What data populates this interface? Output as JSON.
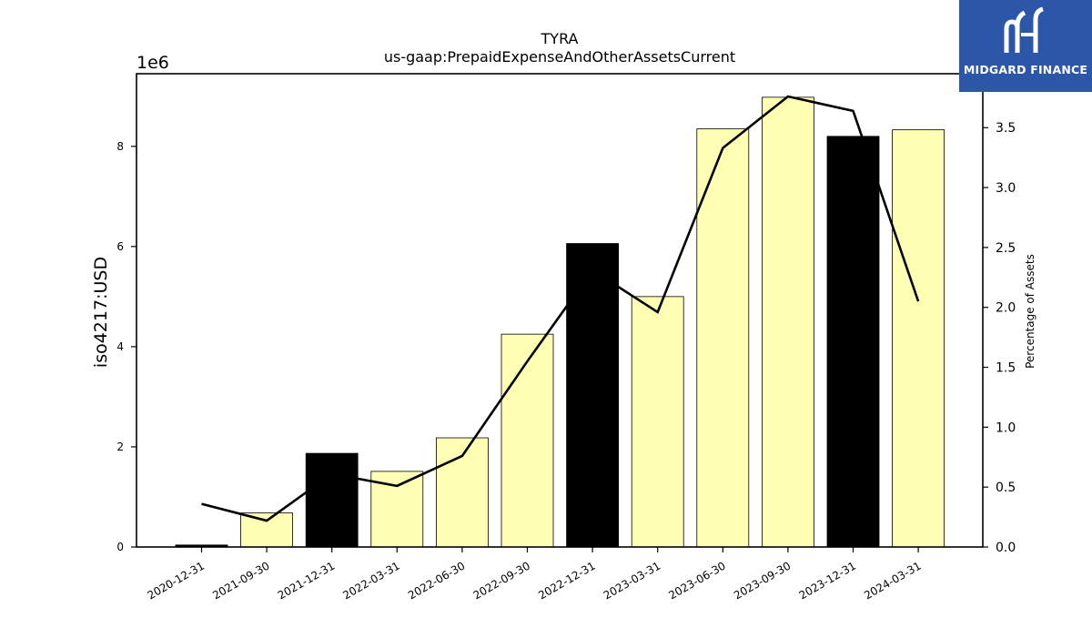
{
  "chart_data": {
    "type": "bar",
    "title": "TYRA",
    "subtitle": "us-gaap:PrepaidExpenseAndOtherAssetsCurrent",
    "ylabel": "iso4217:USD",
    "y_offset_label": "1e6",
    "y2label": "Percentage of Assets",
    "categories": [
      "2020-12-31",
      "2021-09-30",
      "2021-12-31",
      "2022-03-31",
      "2022-06-30",
      "2022-09-30",
      "2022-12-31",
      "2023-03-31",
      "2023-06-30",
      "2023-09-30",
      "2023-12-31",
      "2024-03-31"
    ],
    "series": [
      {
        "type": "bar",
        "values": [
          40000,
          680000,
          1870000,
          1510000,
          2180000,
          4250000,
          6060000,
          5000000,
          8350000,
          8980000,
          8200000,
          8330000
        ],
        "colors": [
          "#000000",
          "#ffffb3",
          "#000000",
          "#ffffb3",
          "#ffffb3",
          "#ffffb3",
          "#000000",
          "#ffffb3",
          "#ffffb3",
          "#ffffb3",
          "#000000",
          "#ffffb3"
        ]
      },
      {
        "type": "line",
        "axis": "right",
        "color": "#000000",
        "values": [
          0.36,
          0.22,
          0.61,
          0.51,
          0.76,
          1.55,
          2.31,
          1.96,
          3.33,
          3.76,
          3.64,
          2.05
        ]
      }
    ],
    "ylim": [
      0,
      9450000
    ],
    "y2lim": [
      0,
      3.95
    ],
    "yticks": [
      0,
      2,
      4,
      6,
      8
    ],
    "y2ticks": [
      "0.0",
      "0.5",
      "1.0",
      "1.5",
      "2.0",
      "2.5",
      "3.0",
      "3.5"
    ],
    "grid": false
  },
  "logo": {
    "text": "MIDGARD FINANCE"
  }
}
